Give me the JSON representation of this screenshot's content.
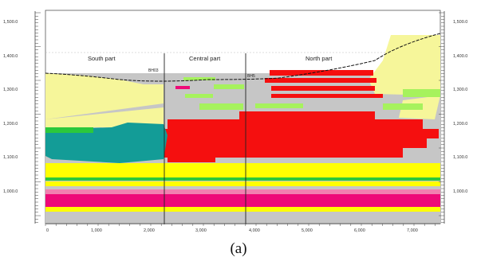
{
  "figure": {
    "caption": "(a)",
    "zones": [
      "South part",
      "Central part",
      "North part"
    ],
    "wells": [
      "BH03",
      "BH5"
    ],
    "y_axis": {
      "ticks": [
        "1,500.0",
        "1,400.0",
        "1,300.0",
        "1,200.0",
        "1,100.0",
        "1,000.0"
      ]
    },
    "x_axis": {
      "ticks": [
        "0",
        "1,000",
        "2,000",
        "3,000",
        "4,000",
        "5,000",
        "6,000",
        "7,000"
      ]
    },
    "legend_colors": {
      "yellow_light": "#f6f69a",
      "yellow": "#ffff00",
      "gray": "#c6c6c6",
      "teal": "#139c97",
      "red": "#f50f0f",
      "green_light": "#a6f25d",
      "green": "#2cc83c",
      "magenta": "#ee0a78",
      "pink": "#f280b0"
    }
  }
}
